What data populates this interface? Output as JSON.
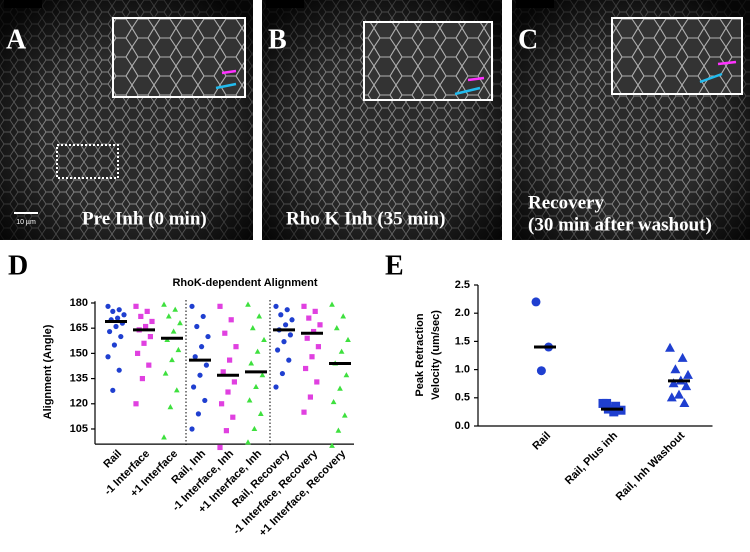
{
  "panels": [
    {
      "letter": "A",
      "caption": [
        "Pre Inh (0 min)"
      ],
      "scale_bar": "10 µm"
    },
    {
      "letter": "B",
      "caption": [
        "Rho K Inh (35 min)"
      ]
    },
    {
      "letter": "C",
      "caption": [
        "Recovery",
        "(30 min after washout)"
      ]
    }
  ],
  "chart_data": [
    {
      "type": "dot",
      "letter": "D",
      "title": "RhoK-dependent Alignment",
      "ylabel": [
        "Alignment (Angle)"
      ],
      "categories": [
        "Rail",
        "-1 Interface",
        "+1 Interface",
        "Rail, Inh",
        "-1 Interface, Inh",
        "+1 Interface, Inh",
        "Rail, Recovery",
        "-1 Interface, Recovery",
        "+1 Interface, Recovery"
      ],
      "colors": [
        "#1f3fd0",
        "#e040e0",
        "#3ee03e",
        "#1f3fd0",
        "#e040e0",
        "#3ee03e",
        "#1f3fd0",
        "#e040e0",
        "#3ee03e"
      ],
      "markers": [
        "circle",
        "square",
        "triangle",
        "circle",
        "square",
        "triangle",
        "circle",
        "square",
        "triangle"
      ],
      "points": [
        [
          178,
          176,
          175,
          173,
          171,
          170,
          168,
          166,
          163,
          160,
          155,
          148,
          140,
          128
        ],
        [
          178,
          175,
          172,
          169,
          166,
          164,
          160,
          156,
          150,
          143,
          135,
          120
        ],
        [
          179,
          176,
          172,
          168,
          163,
          158,
          152,
          146,
          138,
          128,
          118,
          100
        ],
        [
          178,
          172,
          166,
          160,
          154,
          148,
          143,
          137,
          130,
          122,
          114,
          105
        ],
        [
          178,
          170,
          162,
          154,
          146,
          139,
          133,
          127,
          120,
          112,
          104,
          94
        ],
        [
          179,
          172,
          165,
          158,
          151,
          144,
          137,
          130,
          122,
          114,
          105,
          97
        ],
        [
          178,
          176,
          173,
          170,
          167,
          164,
          161,
          157,
          152,
          146,
          138,
          130
        ],
        [
          178,
          175,
          171,
          167,
          163,
          159,
          154,
          148,
          141,
          133,
          124,
          115
        ],
        [
          179,
          172,
          165,
          158,
          151,
          144,
          137,
          129,
          121,
          113,
          104,
          95
        ]
      ],
      "means": [
        169,
        164,
        159,
        146,
        137,
        139,
        164,
        162,
        144
      ],
      "ylim": [
        96,
        181
      ],
      "yticks": [
        105,
        120,
        135,
        150,
        165,
        180
      ]
    },
    {
      "type": "dot",
      "letter": "E",
      "ylabel": [
        "Peak Retraction",
        "Velocity (um/sec)"
      ],
      "categories": [
        "Rail",
        "Rail, Plus inh",
        "Rail, Inh Washout"
      ],
      "colors": [
        "#1f3fd0",
        "#1f3fd0",
        "#1f3fd0"
      ],
      "markers": [
        "circle",
        "square",
        "triangle"
      ],
      "points": [
        [
          2.2,
          1.4,
          0.98
        ],
        [
          0.4,
          0.35,
          0.3,
          0.28,
          0.25,
          0.4
        ],
        [
          1.38,
          1.2,
          1.0,
          0.9,
          0.8,
          0.75,
          0.7,
          0.55,
          0.5,
          0.4
        ]
      ],
      "means": [
        1.4,
        0.3,
        0.8
      ],
      "ylim": [
        0,
        2.5
      ],
      "yticks": [
        {
          "value": 0,
          "label": "0.0"
        },
        {
          "value": 0.5,
          "label": "0.5"
        },
        {
          "value": 1,
          "label": "1.0"
        },
        {
          "value": 1.5,
          "label": "1.5"
        },
        {
          "value": 2,
          "label": "2.0"
        },
        {
          "value": 2.5,
          "label": "2.5"
        }
      ]
    }
  ]
}
